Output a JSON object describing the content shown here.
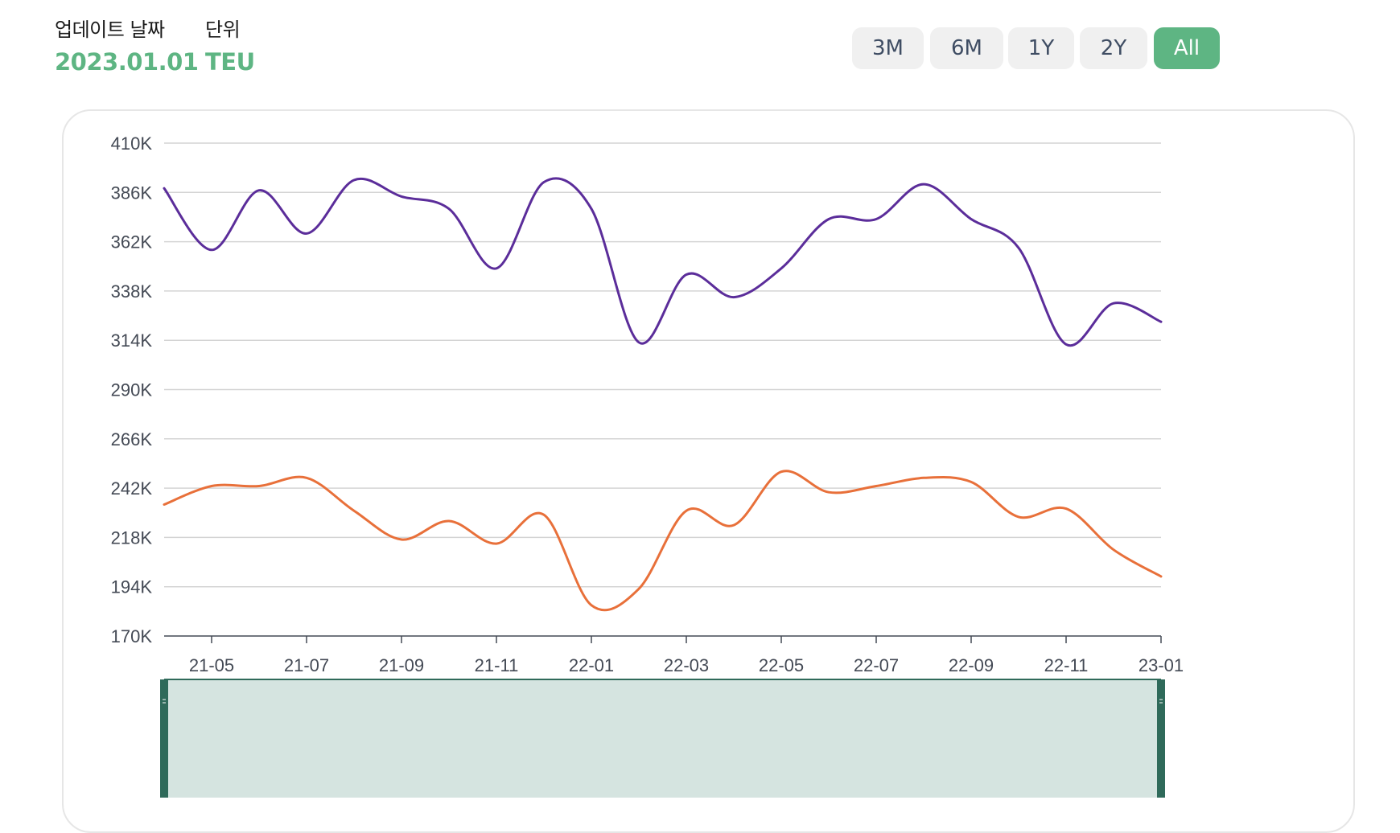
{
  "header": {
    "update_label": "업데이트 날짜",
    "update_value": "2023.01.01",
    "unit_label": "단위",
    "unit_value": "TEU"
  },
  "range_buttons": [
    {
      "label": "3M",
      "active": false
    },
    {
      "label": "6M",
      "active": false
    },
    {
      "label": "1Y",
      "active": false
    },
    {
      "label": "2Y",
      "active": false
    },
    {
      "label": "All",
      "active": true
    }
  ],
  "colors": {
    "accent": "#5eb583",
    "series_purple": "#5b2d9a",
    "series_orange": "#e8703a",
    "grid": "#d4d4d4",
    "slider_fill": "#d5e4e0",
    "slider_handle": "#2f6a5a"
  },
  "chart_data": {
    "type": "line",
    "x": [
      "21-04",
      "21-05",
      "21-06",
      "21-07",
      "21-08",
      "21-09",
      "21-10",
      "21-11",
      "21-12",
      "22-01",
      "22-02",
      "22-03",
      "22-04",
      "22-05",
      "22-06",
      "22-07",
      "22-08",
      "22-09",
      "22-10",
      "22-11",
      "22-12",
      "23-01"
    ],
    "x_tick_labels": [
      "21-05",
      "21-07",
      "21-09",
      "21-11",
      "22-01",
      "22-03",
      "22-05",
      "22-07",
      "22-09",
      "22-11",
      "23-01"
    ],
    "y_tick_labels": [
      "410K",
      "386K",
      "362K",
      "338K",
      "314K",
      "290K",
      "266K",
      "242K",
      "218K",
      "194K",
      "170K"
    ],
    "ylim": [
      170000,
      410000
    ],
    "grid": true,
    "series": [
      {
        "color": "#5b2d9a",
        "values": [
          388000,
          358000,
          387000,
          366000,
          392000,
          384000,
          378000,
          349000,
          391000,
          378000,
          313000,
          346000,
          335000,
          349000,
          373000,
          373000,
          390000,
          373000,
          359000,
          312000,
          332000,
          323000
        ]
      },
      {
        "color": "#e8703a",
        "values": [
          234000,
          243000,
          243000,
          247000,
          231000,
          217000,
          226000,
          215000,
          229000,
          185000,
          193000,
          231000,
          224000,
          250000,
          240000,
          243000,
          247000,
          245000,
          228000,
          232000,
          212000,
          199000
        ]
      }
    ]
  }
}
